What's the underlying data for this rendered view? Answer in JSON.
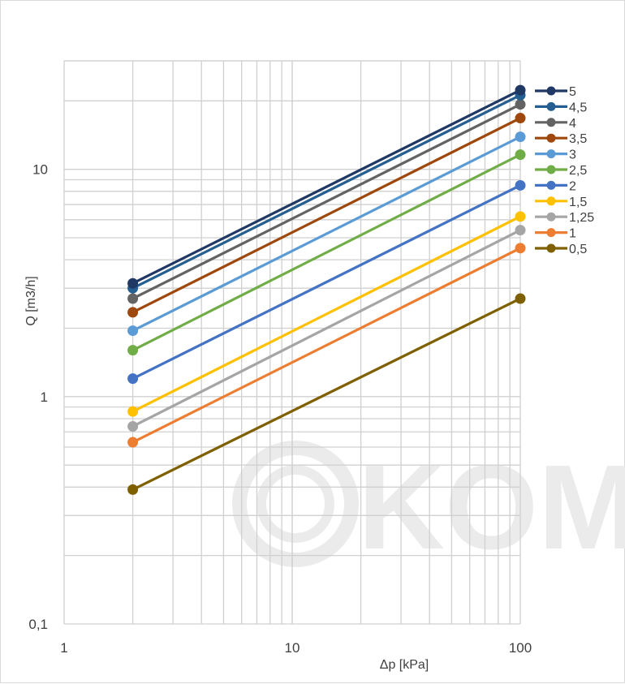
{
  "chart_data": {
    "type": "line",
    "title": "",
    "xlabel": "Δp  [kPa]",
    "ylabel": "Q  [m3/h]",
    "x_scale": "log",
    "y_scale": "log",
    "xlim": [
      1,
      100
    ],
    "ylim": [
      0.1,
      30
    ],
    "x_tick_labels": [
      "1",
      "10",
      "100"
    ],
    "y_tick_labels": [
      "0,1",
      "1",
      "10"
    ],
    "x_tick_values": [
      1,
      10,
      100
    ],
    "y_tick_values": [
      0.1,
      1,
      10
    ],
    "grid": true,
    "legend_position": "right",
    "x": [
      2,
      100
    ],
    "series": [
      {
        "name": "5",
        "color": "#203864",
        "values": [
          3.15,
          22.3
        ]
      },
      {
        "name": "4,5",
        "color": "#255e91",
        "values": [
          3.0,
          21.2
        ]
      },
      {
        "name": "4",
        "color": "#636363",
        "values": [
          2.7,
          19.3
        ]
      },
      {
        "name": "3,5",
        "color": "#9e480e",
        "values": [
          2.35,
          16.8
        ]
      },
      {
        "name": "3",
        "color": "#5b9bd5",
        "values": [
          1.95,
          13.9
        ]
      },
      {
        "name": "2,5",
        "color": "#70ad47",
        "values": [
          1.6,
          11.6
        ]
      },
      {
        "name": "2",
        "color": "#4472c4",
        "values": [
          1.2,
          8.5
        ]
      },
      {
        "name": "1,5",
        "color": "#ffc000",
        "values": [
          0.86,
          6.2
        ]
      },
      {
        "name": "1,25",
        "color": "#a5a5a5",
        "values": [
          0.74,
          5.4
        ]
      },
      {
        "name": "1",
        "color": "#ed7d31",
        "values": [
          0.63,
          4.5
        ]
      },
      {
        "name": "0,5",
        "color": "#7f6000",
        "values": [
          0.39,
          2.7
        ]
      }
    ]
  },
  "watermark": {
    "text": "KOMF",
    "color": "#ebebeb"
  }
}
